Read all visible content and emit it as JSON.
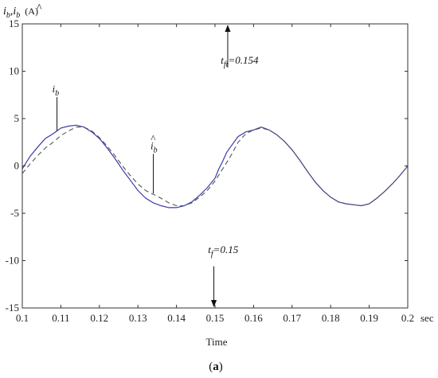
{
  "chart_data": {
    "type": "line",
    "ylabel_var": "i",
    "ylabel_sub": "b",
    "ylabel_unit": "(A)",
    "xlabel": "Time",
    "xunit": "sec",
    "caption": "(a)",
    "caption_letter": "a",
    "xlim": [
      0.1,
      0.2
    ],
    "ylim": [
      -15,
      15
    ],
    "x_ticks": [
      "0.1",
      "0.11",
      "0.12",
      "0.13",
      "0.14",
      "0.15",
      "0.16",
      "0.17",
      "0.18",
      "0.19",
      "0.2"
    ],
    "y_ticks": [
      "15",
      "10",
      "5",
      "0",
      "-5",
      "-10",
      "-15"
    ],
    "series": [
      {
        "name": "i_b",
        "color": "#3a3aa8",
        "style": "solid",
        "x": [
          0.1,
          0.102,
          0.104,
          0.106,
          0.108,
          0.109,
          0.11,
          0.112,
          0.114,
          0.116,
          0.118,
          0.12,
          0.122,
          0.124,
          0.126,
          0.128,
          0.13,
          0.132,
          0.134,
          0.136,
          0.138,
          0.14,
          0.142,
          0.144,
          0.146,
          0.148,
          0.15,
          0.151,
          0.152,
          0.153,
          0.154,
          0.156,
          0.158,
          0.16,
          0.162,
          0.164,
          0.166,
          0.168,
          0.17,
          0.172,
          0.174,
          0.176,
          0.178,
          0.18,
          0.182,
          0.184,
          0.186,
          0.188,
          0.19,
          0.192,
          0.194,
          0.196,
          0.198,
          0.2
        ],
        "y": [
          -0.3,
          1.0,
          2.0,
          2.9,
          3.4,
          3.7,
          4.0,
          4.2,
          4.3,
          4.1,
          3.6,
          2.9,
          1.9,
          0.8,
          -0.4,
          -1.5,
          -2.6,
          -3.4,
          -3.9,
          -4.2,
          -4.4,
          -4.4,
          -4.2,
          -3.8,
          -3.1,
          -2.3,
          -1.3,
          -0.3,
          0.5,
          1.4,
          2.0,
          3.1,
          3.6,
          3.8,
          4.1,
          3.8,
          3.3,
          2.6,
          1.7,
          0.6,
          -0.6,
          -1.7,
          -2.6,
          -3.3,
          -3.8,
          -4.0,
          -4.1,
          -4.2,
          -4.0,
          -3.4,
          -2.7,
          -1.9,
          -1.0,
          0.0
        ]
      },
      {
        "name": "i_b_hat",
        "color": "#555555",
        "style": "dashed",
        "x": [
          0.1,
          0.102,
          0.104,
          0.106,
          0.108,
          0.11,
          0.112,
          0.114,
          0.116,
          0.118,
          0.12,
          0.122,
          0.124,
          0.126,
          0.128,
          0.13,
          0.132,
          0.134,
          0.136,
          0.138,
          0.14,
          0.142,
          0.144,
          0.146,
          0.148,
          0.15,
          0.152,
          0.154,
          0.156,
          0.158,
          0.16,
          0.162,
          0.164,
          0.166,
          0.168,
          0.17,
          0.172,
          0.174,
          0.176,
          0.178,
          0.18,
          0.182,
          0.184,
          0.186,
          0.188,
          0.19,
          0.192,
          0.194,
          0.196,
          0.198,
          0.2
        ],
        "y": [
          -0.8,
          0.2,
          1.1,
          1.9,
          2.5,
          3.2,
          3.7,
          4.1,
          4.1,
          3.7,
          3.0,
          2.1,
          1.1,
          0.0,
          -1.0,
          -1.9,
          -2.6,
          -3.0,
          -3.4,
          -3.9,
          -4.2,
          -4.2,
          -3.9,
          -3.3,
          -2.6,
          -1.6,
          -0.3,
          1.0,
          2.5,
          3.4,
          3.8,
          4.0,
          3.8,
          3.3,
          2.6,
          1.7,
          0.6,
          -0.6,
          -1.7,
          -2.6,
          -3.3,
          -3.8,
          -4.0,
          -4.1,
          -4.2,
          -4.0,
          -3.4,
          -2.7,
          -1.9,
          -1.0,
          0.0
        ]
      }
    ],
    "annotations": [
      {
        "var": "i",
        "sub": "b",
        "hat": false,
        "at_x": 0.109,
        "at_y": 3.7,
        "label_x": 0.109,
        "label_y": 7.6
      },
      {
        "var": "i",
        "sub": "b",
        "hat": true,
        "at_x": 0.134,
        "at_y": -2.9,
        "label_x": 0.1345,
        "label_y": 1.6
      },
      {
        "var": "t",
        "sub": "ft",
        "value": "=0.154",
        "arrow_from_y": 10.4,
        "arrow_to_y": 15,
        "x": 0.1533,
        "label_x": 0.1515,
        "label_y": 10.8
      },
      {
        "var": "t",
        "sub": "f",
        "value": "=0.15",
        "arrow_from_y": -10.6,
        "arrow_to_y": -15,
        "x": 0.1497,
        "label_x": 0.1482,
        "label_y": -9.2
      }
    ]
  }
}
